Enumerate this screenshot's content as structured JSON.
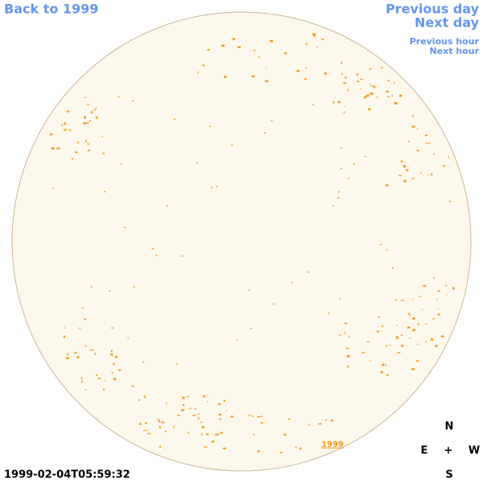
{
  "nav": {
    "back": "Back to 1999",
    "previous_day": "Previous day",
    "next_day": "Next day",
    "previous_hour": "Previous hour",
    "next_hour": "Next hour"
  },
  "timestamp": "1999-02-04T05:59:32",
  "disk_label": "1999",
  "compass": {
    "north": "N",
    "east": "E",
    "center": "+",
    "west": "W",
    "south": "S"
  }
}
